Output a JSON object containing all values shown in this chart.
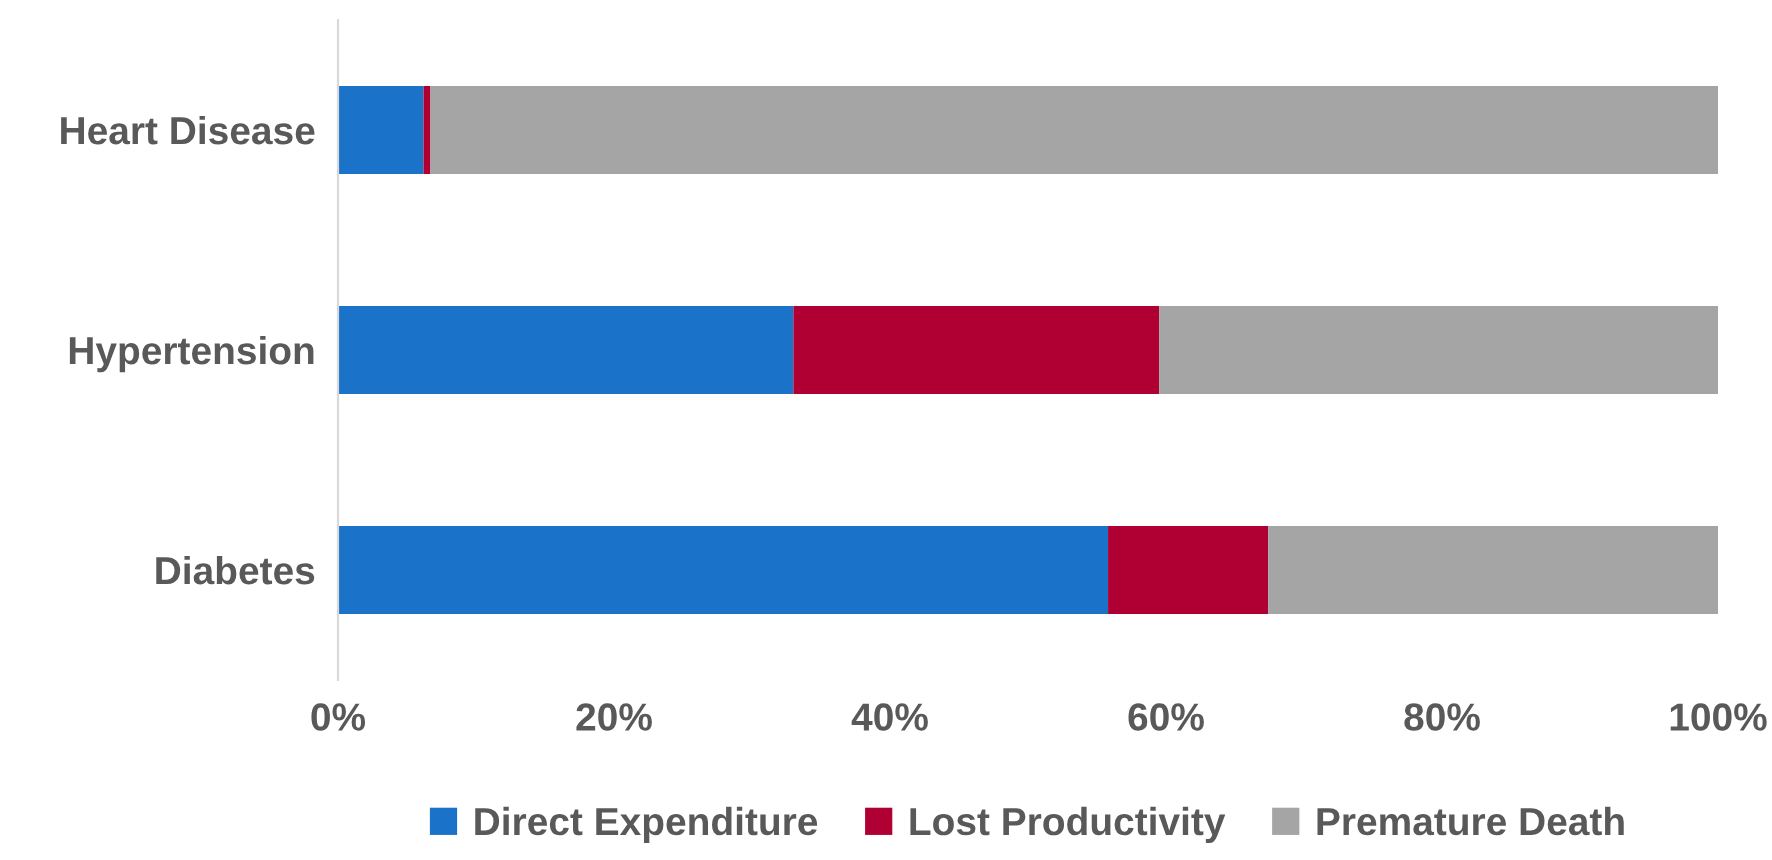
{
  "chart_data": {
    "type": "bar",
    "orientation": "horizontal",
    "stacked": true,
    "categories": [
      "Heart Disease",
      "Hypertension",
      "Diabetes"
    ],
    "series": [
      {
        "name": "Direct Expenditure",
        "color": "#1a73c8",
        "values": [
          6.2,
          33.0,
          55.8
        ]
      },
      {
        "name": "Lost Productivity",
        "color": "#b00033",
        "values": [
          0.5,
          26.5,
          11.6
        ]
      },
      {
        "name": "Premature Death",
        "color": "#a5a5a5",
        "values": [
          93.3,
          40.5,
          32.6
        ]
      }
    ],
    "xlim": [
      0,
      100
    ],
    "xticks": [
      {
        "value": 0,
        "label": "0%"
      },
      {
        "value": 20,
        "label": "20%"
      },
      {
        "value": 40,
        "label": "40%"
      },
      {
        "value": 60,
        "label": "60%"
      },
      {
        "value": 80,
        "label": "80%"
      },
      {
        "value": 100,
        "label": "100%"
      }
    ],
    "grid": false,
    "legend": "bottom"
  }
}
